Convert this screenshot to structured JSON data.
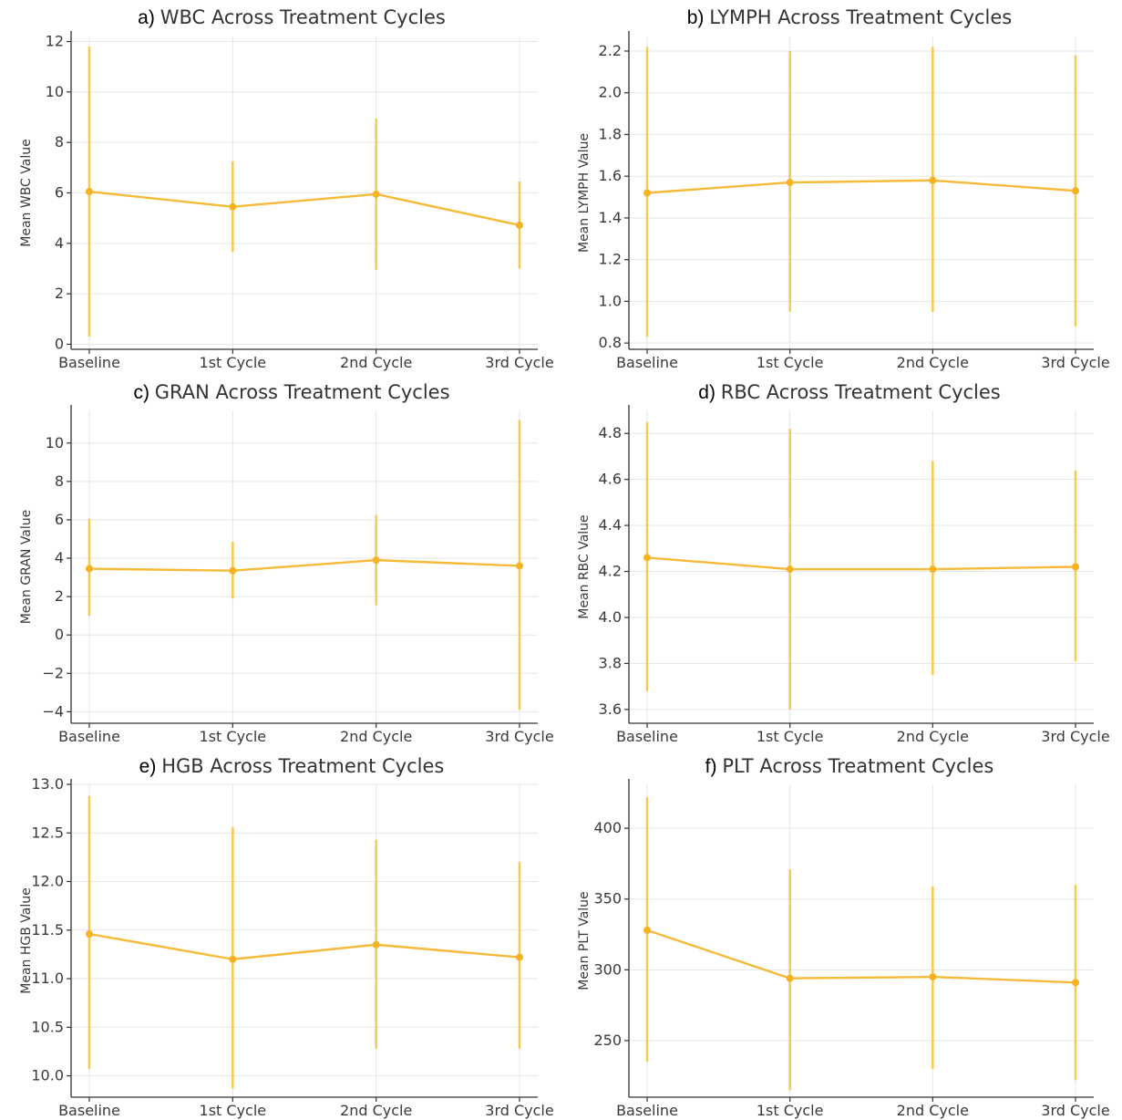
{
  "figure": {
    "line_color": "#F5B324",
    "errorbar_color": "#F8C542",
    "grid": true
  },
  "chart_data": [
    {
      "type": "line",
      "panel": "a)",
      "title": "WBC Across Treatment Cycles",
      "ylabel": "Mean WBC Value",
      "xlabel": "",
      "categories": [
        "Baseline",
        "1st Cycle",
        "2nd Cycle",
        "3rd Cycle"
      ],
      "values": [
        6.05,
        5.45,
        5.95,
        4.72
      ],
      "error_low": [
        0.3,
        3.65,
        2.95,
        3.0
      ],
      "error_high": [
        11.8,
        7.25,
        8.95,
        6.45
      ],
      "ylim": [
        -0.2,
        12.2
      ],
      "yticks": [
        0,
        2,
        4,
        6,
        8,
        10,
        12
      ],
      "ytick_labels": [
        "0",
        "2",
        "4",
        "6",
        "8",
        "10",
        "12"
      ]
    },
    {
      "type": "line",
      "panel": "b)",
      "title": "LYMPH Across Treatment Cycles",
      "ylabel": "Mean LYMPH Value",
      "xlabel": "",
      "categories": [
        "Baseline",
        "1st Cycle",
        "2nd Cycle",
        "3rd Cycle"
      ],
      "values": [
        1.52,
        1.57,
        1.58,
        1.53
      ],
      "error_low": [
        0.83,
        0.95,
        0.95,
        0.88
      ],
      "error_high": [
        2.22,
        2.2,
        2.22,
        2.18
      ],
      "ylim": [
        0.77,
        2.27
      ],
      "yticks": [
        0.8,
        1.0,
        1.2,
        1.4,
        1.6,
        1.8,
        2.0,
        2.2
      ],
      "ytick_labels": [
        "0.8",
        "1.0",
        "1.2",
        "1.4",
        "1.6",
        "1.8",
        "2.0",
        "2.2"
      ]
    },
    {
      "type": "line",
      "panel": "c)",
      "title": "GRAN Across Treatment Cycles",
      "ylabel": "Mean GRAN Value",
      "xlabel": "",
      "categories": [
        "Baseline",
        "1st Cycle",
        "2nd Cycle",
        "3rd Cycle"
      ],
      "values": [
        3.45,
        3.35,
        3.9,
        3.6
      ],
      "error_low": [
        1.0,
        1.9,
        1.55,
        -3.9
      ],
      "error_high": [
        6.05,
        4.85,
        6.25,
        11.2
      ],
      "ylim": [
        -4.6,
        11.7
      ],
      "yticks": [
        -4,
        -2,
        0,
        2,
        4,
        6,
        8,
        10
      ],
      "ytick_labels": [
        "−4",
        "−2",
        "0",
        "2",
        "4",
        "6",
        "8",
        "10"
      ]
    },
    {
      "type": "line",
      "panel": "d)",
      "title": "RBC Across Treatment Cycles",
      "ylabel": "Mean RBC Value",
      "xlabel": "",
      "categories": [
        "Baseline",
        "1st Cycle",
        "2nd Cycle",
        "3rd Cycle"
      ],
      "values": [
        4.26,
        4.21,
        4.21,
        4.22
      ],
      "error_low": [
        3.68,
        3.6,
        3.75,
        3.81
      ],
      "error_high": [
        4.85,
        4.82,
        4.68,
        4.64
      ],
      "ylim": [
        3.54,
        4.9
      ],
      "yticks": [
        3.6,
        3.8,
        4.0,
        4.2,
        4.4,
        4.6,
        4.8
      ],
      "ytick_labels": [
        "3.6",
        "3.8",
        "4.0",
        "4.2",
        "4.4",
        "4.6",
        "4.8"
      ]
    },
    {
      "type": "line",
      "panel": "e)",
      "title": "HGB Across Treatment Cycles",
      "ylabel": "Mean HGB Value",
      "xlabel": "",
      "categories": [
        "Baseline",
        "1st Cycle",
        "2nd Cycle",
        "3rd Cycle"
      ],
      "values": [
        11.46,
        11.2,
        11.35,
        11.22
      ],
      "error_low": [
        10.07,
        9.87,
        10.28,
        10.28
      ],
      "error_high": [
        12.88,
        12.56,
        12.43,
        12.2
      ],
      "ylim": [
        9.78,
        13.0
      ],
      "yticks": [
        10.0,
        10.5,
        11.0,
        11.5,
        12.0,
        12.5,
        13.0
      ],
      "ytick_labels": [
        "10.0",
        "10.5",
        "11.0",
        "11.5",
        "12.0",
        "12.5",
        "13.0"
      ]
    },
    {
      "type": "line",
      "panel": "f)",
      "title": "PLT Across Treatment Cycles",
      "ylabel": "Mean PLT Value",
      "xlabel": "",
      "categories": [
        "Baseline",
        "1st Cycle",
        "2nd Cycle",
        "3rd Cycle"
      ],
      "values": [
        328,
        294,
        295,
        291
      ],
      "error_low": [
        235,
        215,
        230,
        222
      ],
      "error_high": [
        422,
        371,
        359,
        360
      ],
      "ylim": [
        210,
        431
      ],
      "yticks": [
        250,
        300,
        350,
        400
      ],
      "ytick_labels": [
        "250",
        "300",
        "350",
        "400"
      ]
    }
  ]
}
